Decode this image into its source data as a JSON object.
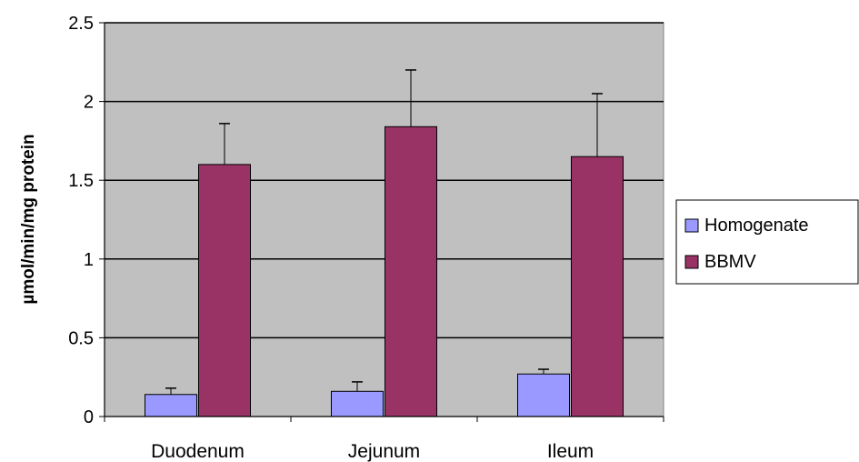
{
  "chart_data": {
    "type": "bar",
    "title": "",
    "xlabel": "",
    "ylabel": "µmol/min/mg protein",
    "ylim": [
      0,
      2.5
    ],
    "yticks": [
      0,
      0.5,
      1,
      1.5,
      2,
      2.5
    ],
    "ytick_labels": [
      "0",
      "0.5",
      "1",
      "1.5",
      "2",
      "2.5"
    ],
    "grid": true,
    "legend_position": "right",
    "categories": [
      "Duodenum",
      "Jejunum",
      "Ileum"
    ],
    "series": [
      {
        "name": "Homogenate",
        "color": "#9999ff",
        "values": [
          0.14,
          0.16,
          0.27
        ],
        "error": [
          0.04,
          0.06,
          0.03
        ]
      },
      {
        "name": "BBMV",
        "color": "#993366",
        "values": [
          1.6,
          1.84,
          1.65
        ],
        "error": [
          0.26,
          0.36,
          0.4
        ]
      }
    ],
    "plot_background": "#c0c0c0"
  }
}
